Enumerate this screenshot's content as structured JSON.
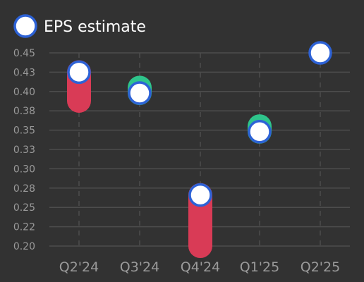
{
  "chart_data": {
    "type": "scatter",
    "legend": {
      "label": "EPS estimate",
      "position": "top-left"
    },
    "categories": [
      "Q2'24",
      "Q3'24",
      "Q4'24",
      "Q1'25",
      "Q2'25"
    ],
    "estimate": [
      0.425,
      0.398,
      0.266,
      0.348,
      0.45
    ],
    "actual": [
      0.388,
      0.405,
      0.2,
      0.355,
      null
    ],
    "y_ticks": [
      "0.45",
      "0.43",
      "0.40",
      "0.38",
      "0.35",
      "0.33",
      "0.30",
      "0.28",
      "0.25",
      "0.22",
      "0.20"
    ],
    "ylim": [
      0.2,
      0.45
    ],
    "grid": true,
    "colors": {
      "background": "#323232",
      "grid": "#4d4d4d",
      "estimate_fill": "#ffffff",
      "estimate_stroke": "#2d62d6",
      "beat": "#2ec48b",
      "miss": "#d93b56",
      "tick_text": "#9a9a9a",
      "legend_text": "#ffffff"
    }
  }
}
